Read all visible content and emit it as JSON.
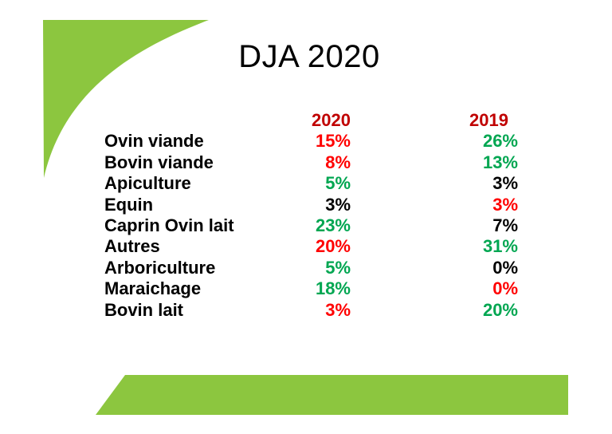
{
  "title": "DJA 2020",
  "colors": {
    "accent_green": "#8CC63F",
    "header_red": "#C00000",
    "value_red": "#FF0000",
    "value_green": "#00A651",
    "text_black": "#000000"
  },
  "table": {
    "header": {
      "col_2020": "2020",
      "col_2019": "2019"
    },
    "rows": [
      {
        "label": "Ovin viande",
        "y2020": {
          "text": "15%",
          "color": "value_red"
        },
        "y2019": {
          "text": "26%",
          "color": "value_green"
        }
      },
      {
        "label": "Bovin viande",
        "y2020": {
          "text": "8%",
          "color": "value_red"
        },
        "y2019": {
          "text": "13%",
          "color": "value_green"
        }
      },
      {
        "label": "Apiculture",
        "y2020": {
          "text": "5%",
          "color": "value_green"
        },
        "y2019": {
          "text": "3%",
          "color": "text_black"
        }
      },
      {
        "label": "Equin",
        "y2020": {
          "text": "3%",
          "color": "text_black"
        },
        "y2019": {
          "text": "3%",
          "color": "value_red"
        }
      },
      {
        "label": "Caprin Ovin lait",
        "y2020": {
          "text": "23%",
          "color": "value_green"
        },
        "y2019": {
          "text": "7%",
          "color": "text_black"
        }
      },
      {
        "label": "Autres",
        "y2020": {
          "text": "20%",
          "color": "value_red"
        },
        "y2019": {
          "text": "31%",
          "color": "value_green"
        }
      },
      {
        "label": "Arboriculture",
        "y2020": {
          "text": "5%",
          "color": "value_green"
        },
        "y2019": {
          "text": "0%",
          "color": "text_black"
        }
      },
      {
        "label": "Maraichage",
        "y2020": {
          "text": "18%",
          "color": "value_green"
        },
        "y2019": {
          "text": "0%",
          "color": "value_red"
        }
      },
      {
        "label": "Bovin lait",
        "y2020": {
          "text": "3%",
          "color": "value_red"
        },
        "y2019": {
          "text": "20%",
          "color": "value_green"
        }
      }
    ]
  }
}
